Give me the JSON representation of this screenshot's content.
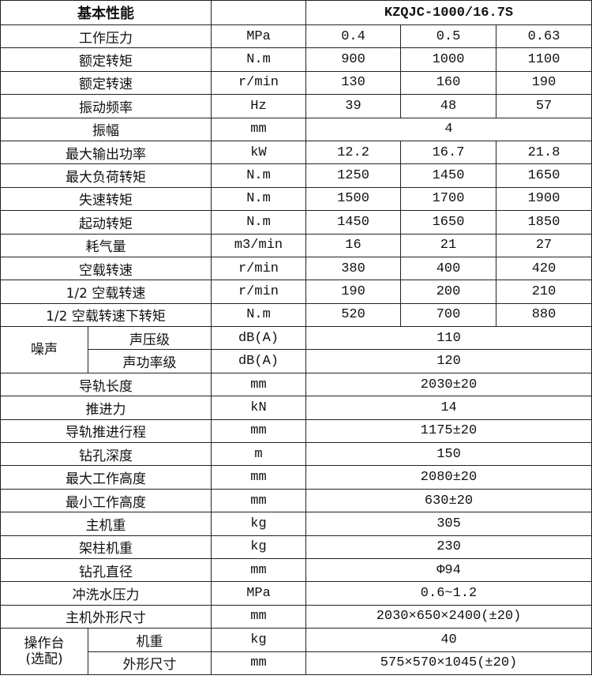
{
  "header": {
    "title": "基本性能",
    "unit": "",
    "model": "KZQJC-1000/16.7S"
  },
  "rows": [
    {
      "label": "工作压力",
      "unit": "MPa",
      "values": [
        "0.4",
        "0.5",
        "0.63"
      ]
    },
    {
      "label": "额定转矩",
      "unit": "N.m",
      "values": [
        "900",
        "1000",
        "1100"
      ]
    },
    {
      "label": "额定转速",
      "unit": "r/min",
      "values": [
        "130",
        "160",
        "190"
      ]
    },
    {
      "label": "振动频率",
      "unit": "Hz",
      "values": [
        "39",
        "48",
        "57"
      ]
    },
    {
      "label": "振幅",
      "unit": "mm",
      "values": [
        "4"
      ]
    },
    {
      "label": "最大输出功率",
      "unit": "kW",
      "values": [
        "12.2",
        "16.7",
        "21.8"
      ]
    },
    {
      "label": "最大负荷转矩",
      "unit": "N.m",
      "values": [
        "1250",
        "1450",
        "1650"
      ]
    },
    {
      "label": "失速转矩",
      "unit": "N.m",
      "values": [
        "1500",
        "1700",
        "1900"
      ]
    },
    {
      "label": "起动转矩",
      "unit": "N.m",
      "values": [
        "1450",
        "1650",
        "1850"
      ]
    },
    {
      "label": "耗气量",
      "unit": "m3/min",
      "values": [
        "16",
        "21",
        "27"
      ]
    },
    {
      "label": "空载转速",
      "unit": "r/min",
      "values": [
        "380",
        "400",
        "420"
      ]
    },
    {
      "label": "1/2 空载转速",
      "unit": "r/min",
      "values": [
        "190",
        "200",
        "210"
      ]
    },
    {
      "label": "1/2 空载转速下转矩",
      "unit": "N.m",
      "values": [
        "520",
        "700",
        "880"
      ]
    },
    {
      "group": "噪声",
      "sub": [
        {
          "label": "声压级",
          "unit": "dB(A)",
          "values": [
            "110"
          ]
        },
        {
          "label": "声功率级",
          "unit": "dB(A)",
          "values": [
            "120"
          ]
        }
      ]
    },
    {
      "label": "导轨长度",
      "unit": "mm",
      "values": [
        "2030±20"
      ]
    },
    {
      "label": "推进力",
      "unit": "kN",
      "values": [
        "14"
      ]
    },
    {
      "label": "导轨推进行程",
      "unit": "mm",
      "values": [
        "1175±20"
      ]
    },
    {
      "label": "钻孔深度",
      "unit": "m",
      "values": [
        "150"
      ]
    },
    {
      "label": "最大工作高度",
      "unit": "mm",
      "values": [
        "2080±20"
      ]
    },
    {
      "label": "最小工作高度",
      "unit": "mm",
      "values": [
        "630±20"
      ]
    },
    {
      "label": "主机重",
      "unit": "kg",
      "values": [
        "305"
      ]
    },
    {
      "label": "架柱机重",
      "unit": "kg",
      "values": [
        "230"
      ]
    },
    {
      "label": "钻孔直径",
      "unit": "mm",
      "values": [
        "Φ94"
      ]
    },
    {
      "label": "冲洗水压力",
      "unit": "MPa",
      "values": [
        "0.6~1.2"
      ]
    },
    {
      "label": "主机外形尺寸",
      "unit": "mm",
      "values": [
        "2030×650×2400(±20)"
      ]
    },
    {
      "group": "操作台\n(选配)",
      "sub": [
        {
          "label": "机重",
          "unit": "kg",
          "values": [
            "40"
          ]
        },
        {
          "label": "外形尺寸",
          "unit": "mm",
          "values": [
            "575×570×1045(±20)"
          ]
        }
      ]
    }
  ]
}
